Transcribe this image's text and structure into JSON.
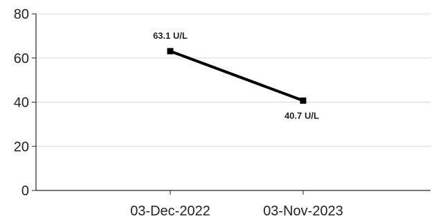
{
  "chart_data": {
    "type": "line",
    "title": "",
    "xlabel": "",
    "ylabel": "",
    "categories": [
      "03-Dec-2022",
      "03-Nov-2023"
    ],
    "series": [
      {
        "values": [
          63.1,
          40.7
        ],
        "data_labels": [
          "63.1 U/L",
          "40.7 U/L"
        ],
        "color": "#000000"
      }
    ],
    "ylim": [
      0,
      80
    ],
    "yticks": [
      "0",
      "20",
      "40",
      "60",
      "80"
    ],
    "grid": true,
    "legend": "none",
    "colors": {
      "line": "#000000",
      "grid": "#d9d9d9",
      "axis": "#222222"
    }
  }
}
